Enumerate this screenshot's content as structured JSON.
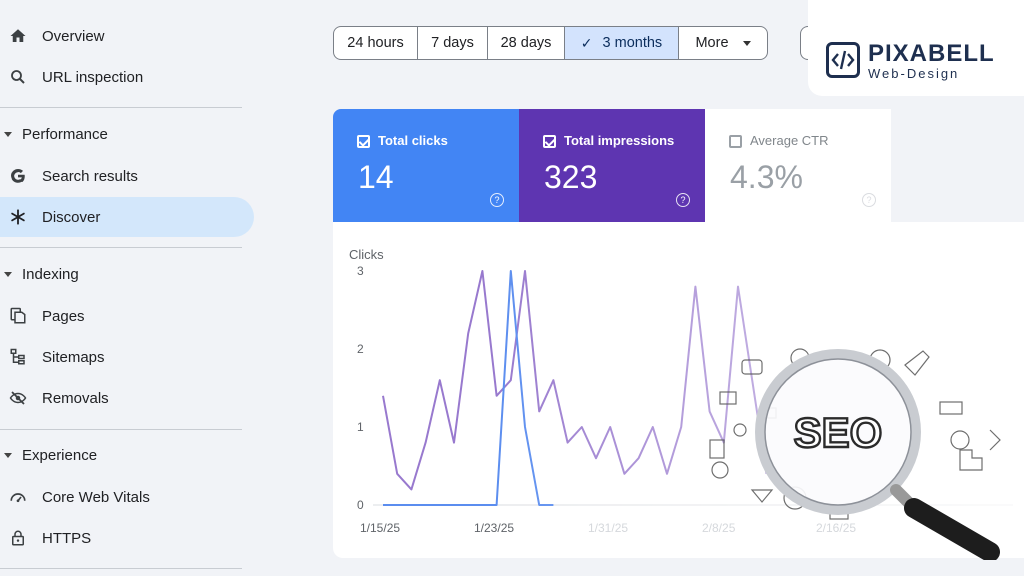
{
  "sidebar": {
    "items": [
      {
        "label": "Overview",
        "icon": "home-icon"
      },
      {
        "label": "URL inspection",
        "icon": "search-icon"
      },
      {
        "label": "Search results",
        "icon": "google-g-icon"
      },
      {
        "label": "Discover",
        "icon": "asterisk-icon",
        "active": true
      },
      {
        "label": "Pages",
        "icon": "pages-icon"
      },
      {
        "label": "Sitemaps",
        "icon": "sitemap-icon"
      },
      {
        "label": "Removals",
        "icon": "visibility-off-icon"
      },
      {
        "label": "Core Web Vitals",
        "icon": "speedometer-icon"
      },
      {
        "label": "HTTPS",
        "icon": "lock-icon"
      }
    ],
    "sections": [
      "Performance",
      "Indexing",
      "Experience"
    ]
  },
  "date_range": {
    "options": [
      "24 hours",
      "7 days",
      "28 days",
      "3 months",
      "More"
    ],
    "selected": "3 months"
  },
  "logo": {
    "title": "PIXABELL",
    "subtitle": "Web-Design"
  },
  "metrics": {
    "clicks": {
      "label": "Total clicks",
      "value": "14",
      "checked": true,
      "color": "#4285f4"
    },
    "impressions": {
      "label": "Total impressions",
      "value": "323",
      "checked": true,
      "color": "#5e35b1"
    },
    "ctr": {
      "label": "Average CTR",
      "value": "4.3%",
      "checked": false
    }
  },
  "illustration": {
    "text": "SEO"
  },
  "chart_data": {
    "type": "line",
    "ylabel": "Clicks",
    "y_ticks": [
      "3",
      "2",
      "1",
      "0"
    ],
    "x_tick_labels": [
      "1/15/25",
      "1/23/25",
      "1/31/25",
      "2/8/25",
      "2/16/25"
    ],
    "ylim": [
      0,
      3
    ],
    "series": [
      {
        "name": "Total clicks",
        "color": "#5b8def",
        "values": [
          0,
          0,
          0,
          0,
          0,
          0,
          0,
          0,
          0,
          3,
          1,
          0,
          0
        ]
      },
      {
        "name": "Total impressions",
        "color": "#7e57c2",
        "values": [
          1.4,
          0.4,
          0.2,
          0.8,
          1.6,
          0.8,
          2.2,
          3,
          1.4,
          1.6,
          3,
          1.2,
          1.6,
          0.8,
          1.0,
          0.6,
          1.0,
          0.4,
          0.6,
          1.0,
          0.4,
          1.0,
          2.8,
          1.2,
          0.8,
          2.8,
          1.6,
          0.4
        ]
      }
    ]
  }
}
